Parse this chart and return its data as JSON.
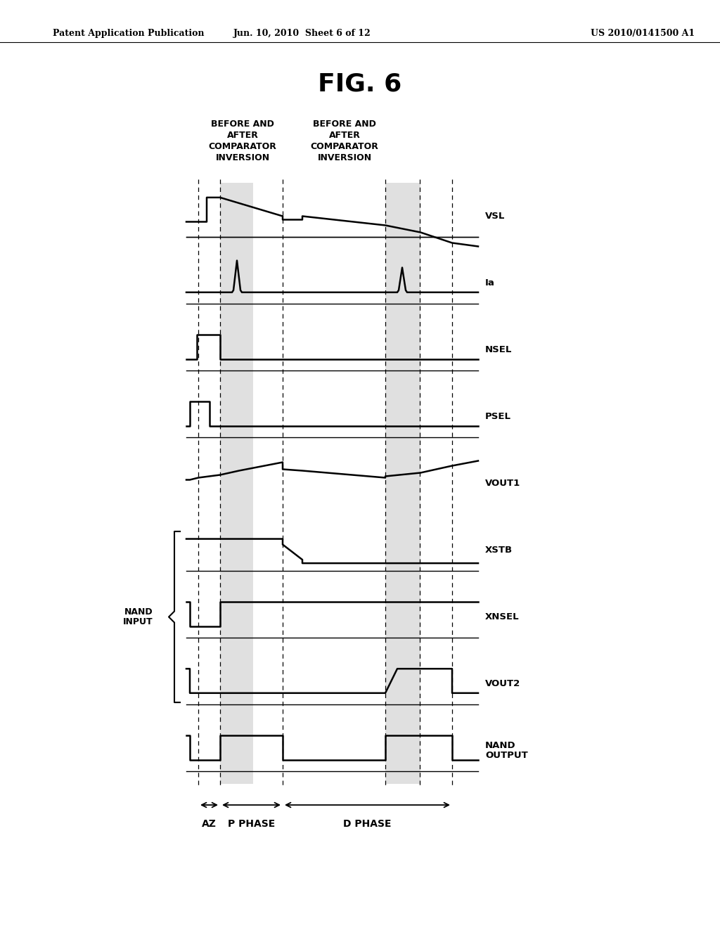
{
  "title": "FIG. 6",
  "header_left": "Patent Application Publication",
  "header_mid": "Jun. 10, 2010  Sheet 6 of 12",
  "header_right": "US 2010/0141500 A1",
  "col_label1": "BEFORE AND\nAFTER\nCOMPARATOR\nINVERSION",
  "col_label2": "BEFORE AND\nAFTER\nCOMPARATOR\nINVERSION",
  "nand_input_label": "NAND\nINPUT",
  "phase_labels": [
    "AZ",
    "P PHASE",
    "D PHASE"
  ],
  "signal_labels": [
    "VSL",
    "Ia",
    "NSEL",
    "PSEL",
    "VOUT1",
    "XSTB",
    "XNSEL",
    "VOUT2",
    "NAND\nOUTPUT"
  ],
  "background_color": "#ffffff"
}
